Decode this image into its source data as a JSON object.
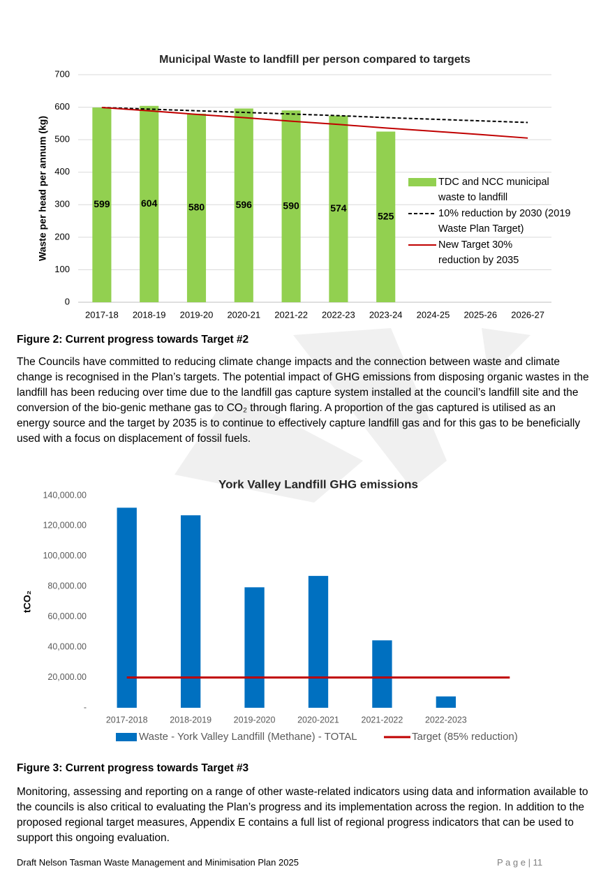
{
  "chart_data": [
    {
      "type": "bar",
      "title": "Municipal Waste to landfill per person compared to targets",
      "y_label": "Waste per head per annum (kg)",
      "categories": [
        "2017-18",
        "2018-19",
        "2019-20",
        "2020-21",
        "2021-22",
        "2022-23",
        "2023-24",
        "2024-25",
        "2025-26",
        "2026-27"
      ],
      "series": [
        {
          "name": "TDC and NCC municipal waste to landfill",
          "type": "bar",
          "color": "#92d050",
          "values": [
            599,
            604,
            580,
            596,
            590,
            574,
            525,
            null,
            null,
            null
          ],
          "data_labels": true
        },
        {
          "name": "10% reduction by 2030 (2019 Waste Plan Target)",
          "type": "line",
          "dash": true,
          "color": "#000000",
          "values": [
            599,
            594,
            589,
            584,
            579,
            574,
            568,
            563,
            558,
            553
          ]
        },
        {
          "name": "New Target 30% reduction by 2035",
          "type": "line",
          "color": "#c00000",
          "values": [
            599,
            589,
            578,
            568,
            557,
            547,
            536,
            526,
            516,
            505
          ]
        }
      ],
      "ylim": [
        0,
        700
      ],
      "yticks": [
        0,
        100,
        200,
        300,
        400,
        500,
        600,
        700
      ],
      "grid": true,
      "legend": "right"
    },
    {
      "type": "bar",
      "title": "York Valley Landfill GHG emissions",
      "y_label": "tCO₂",
      "categories": [
        "2017-2018",
        "2018-2019",
        "2019-2020",
        "2020-2021",
        "2021-2022",
        "2022-2023",
        null
      ],
      "series": [
        {
          "name": "Waste - York Valley Landfill (Methane) - TOTAL",
          "type": "bar",
          "color": "#0070c0",
          "values": [
            132000,
            127000,
            79500,
            87000,
            44500,
            7500,
            null
          ]
        },
        {
          "name": "Target (85% reduction)",
          "type": "line",
          "color": "#c00000",
          "values": [
            20000,
            20000,
            20000,
            20000,
            20000,
            20000,
            20000
          ]
        }
      ],
      "ylim": [
        0,
        140000
      ],
      "yticks": [
        {
          "value": 0,
          "label": "-"
        },
        {
          "value": 20000,
          "label": "20,000.00"
        },
        {
          "value": 40000,
          "label": "40,000.00"
        },
        {
          "value": 60000,
          "label": "60,000.00"
        },
        {
          "value": 80000,
          "label": "80,000.00"
        },
        {
          "value": 100000,
          "label": "100,000.00"
        },
        {
          "value": 120000,
          "label": "120,000.00"
        },
        {
          "value": 140000,
          "label": "140,000.00"
        }
      ],
      "grid": false,
      "legend": "bottom"
    }
  ],
  "captions": [
    "Figure 2: Current progress towards Target #2",
    "Figure 3: Current progress towards Target #3"
  ],
  "paragraphs": [
    "The Councils have committed to reducing climate change impacts and the connection between waste and climate change is recognised in the Plan’s targets. The potential impact of GHG emissions from disposing organic wastes in the landfill has been reducing over time due to the landfill gas capture system installed at the council’s landfill site and the conversion of the bio-genic methane gas to CO₂ through flaring. A proportion of the gas captured is utilised as an energy source and the target by 2035 is to continue to effectively capture landfill gas and for this gas to be beneficially used with a focus on displacement of fossil fuels.",
    "Monitoring, assessing and reporting on a range of other waste-related indicators using data and information available to the councils is also critical to evaluating the Plan’s progress and its implementation across the region. In addition to the proposed regional target measures, Appendix E contains a full list of regional progress indicators that can be used to support this ongoing evaluation."
  ],
  "footer": {
    "title": "Draft Nelson Tasman Waste Management and Minimisation Plan 2025",
    "page": "P a g e | 11"
  }
}
